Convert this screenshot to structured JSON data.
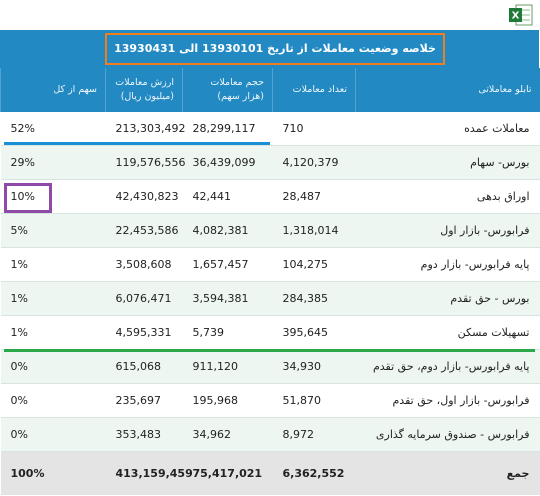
{
  "header": {
    "title": "خلاصه وضعیت معاملات از تاریخ 13930101 الی 13930431"
  },
  "table": {
    "columns": [
      [
        "تابلو معاملاتی"
      ],
      [
        "تعداد معاملات"
      ],
      [
        "حجم معاملات",
        "(هزار سهم)"
      ],
      [
        "ارزش معاملات",
        "(میلیون ریال)"
      ],
      [
        "سهم از کل"
      ]
    ],
    "rows": [
      [
        "معاملات عمده",
        "710",
        "28,299,117",
        "213,303,492",
        "52%"
      ],
      [
        "بورس- سهام",
        "4,120,379",
        "36,439,099",
        "119,576,556",
        "29%"
      ],
      [
        "اوراق بدهی",
        "28,487",
        "42,441",
        "42,430,823",
        "10%"
      ],
      [
        "فرابورس- بازار اول",
        "1,318,014",
        "4,082,381",
        "22,453,586",
        "5%"
      ],
      [
        "پایه فرابورس- بازار دوم",
        "104,275",
        "1,657,457",
        "3,508,608",
        "1%"
      ],
      [
        "بورس - حق تقدم",
        "284,385",
        "3,594,381",
        "6,076,471",
        "1%"
      ],
      [
        "تسهیلات مسکن",
        "395,645",
        "5,739",
        "4,595,331",
        "1%"
      ],
      [
        "پایه فرابورس- بازار دوم، حق تقدم",
        "34,930",
        "911,120",
        "615,068",
        "0%"
      ],
      [
        "فرابورس- بازار اول، حق تقدم",
        "51,870",
        "195,968",
        "235,697",
        "0%"
      ],
      [
        "فرابورس - صندوق سرمایه گذاری",
        "8,972",
        "34,962",
        "353,483",
        "0%"
      ]
    ],
    "total": [
      "جمع",
      "6,362,552",
      "75,417,021",
      "413,159,459",
      "100%"
    ]
  }
}
